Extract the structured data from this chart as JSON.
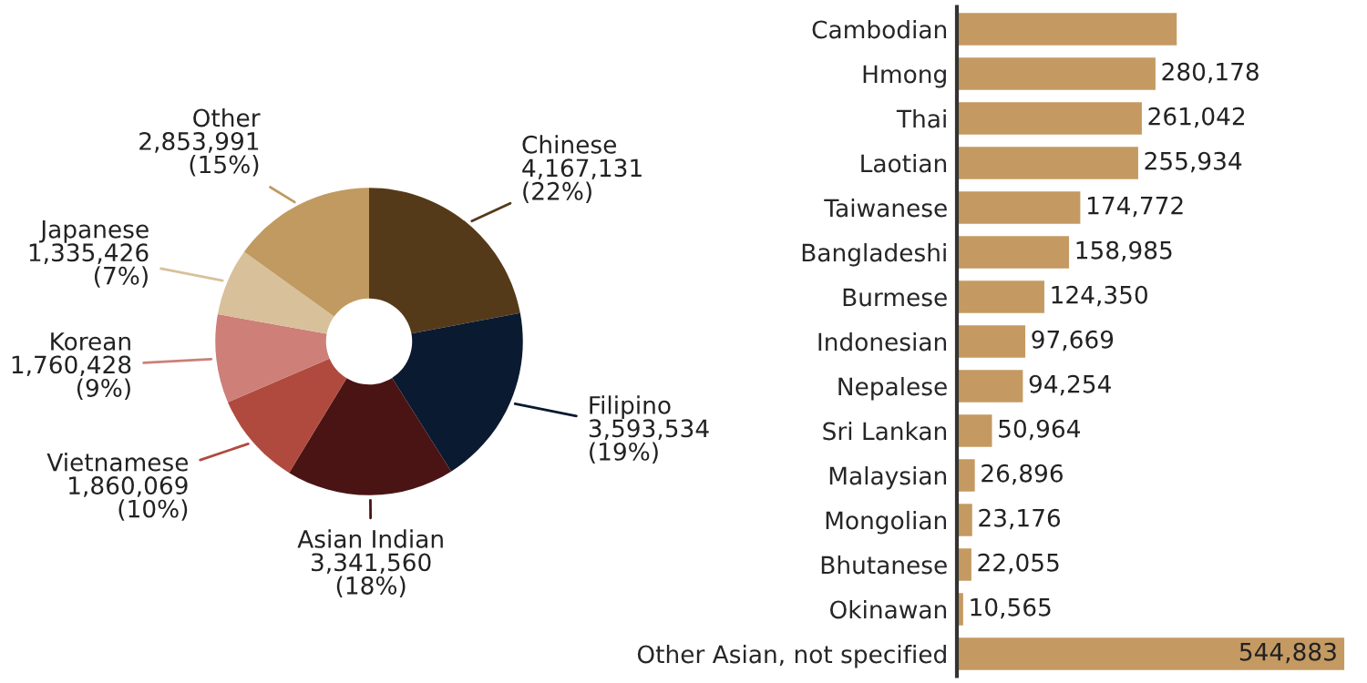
{
  "chart_data": [
    {
      "type": "donut",
      "categories": [
        "Chinese",
        "Filipino",
        "Asian Indian",
        "Vietnamese",
        "Korean",
        "Japanese",
        "Other"
      ],
      "values": [
        4167131,
        3593534,
        3341560,
        1860069,
        1760428,
        1335426,
        2853991
      ],
      "value_labels": [
        "4,167,131\n(22%)",
        "3,593,534\n(19%)",
        "3,341,560\n(18%)",
        "1,860,069\n(10%)",
        "1,760,428\n(9%)",
        "1,335,426\n(7%)",
        "2,853,991\n(15%)"
      ],
      "colors": [
        "#553a1a",
        "#0a1a30",
        "#4a1414",
        "#b04a3e",
        "#cd7f78",
        "#d8c09a",
        "#c09a60"
      ]
    },
    {
      "type": "bar",
      "orientation": "horizontal",
      "categories": [
        "Cambodian",
        "Hmong",
        "Thai",
        "Laotian",
        "Taiwanese",
        "Bangladeshi",
        "Burmese",
        "Indonesian",
        "Nepalese",
        "Sri Lankan",
        "Malaysian",
        "Mongolian",
        "Bhutanese",
        "Okinawan",
        "Other Asian, not specified"
      ],
      "values": [
        310000,
        280178,
        261042,
        255934,
        174772,
        158985,
        124350,
        97669,
        94254,
        50964,
        26896,
        23176,
        22055,
        10565,
        544883
      ],
      "value_labels": [
        null,
        "280,178",
        "261,042",
        "255,934",
        "174,772",
        "158,985",
        "124,350",
        "97,669",
        "94,254",
        "50,964",
        "26,896",
        "23,176",
        "22,055",
        "10,565",
        "544,883"
      ],
      "color": "#c49a62"
    }
  ]
}
